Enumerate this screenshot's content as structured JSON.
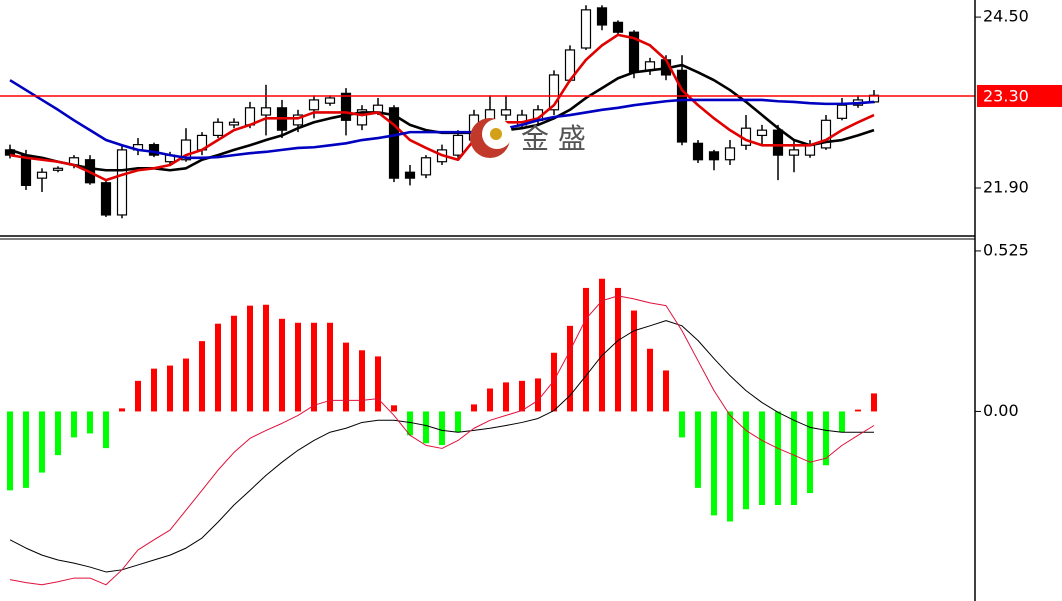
{
  "chart_data": [
    {
      "type": "candlestick",
      "open": [
        22.48,
        22.4,
        22.05,
        22.17,
        22.25,
        22.33,
        21.98,
        21.49,
        22.48,
        22.56,
        22.3,
        22.33,
        22.48,
        22.7,
        22.86,
        22.86,
        23.01,
        23.12,
        22.86,
        23.09,
        23.19,
        23.34,
        22.86,
        23.05,
        23.12,
        22.14,
        22.1,
        22.3,
        22.4,
        22.63,
        22.86,
        23.01,
        22.86,
        22.93,
        23.09,
        23.54,
        24.03,
        24.64,
        24.42,
        24.27,
        23.69,
        23.85,
        23.69,
        22.58,
        22.45,
        22.33,
        22.55,
        22.7,
        22.78,
        22.4,
        22.4,
        22.51,
        22.96,
        23.16,
        23.21
      ],
      "high": [
        22.56,
        22.48,
        22.2,
        22.23,
        22.4,
        22.4,
        22.02,
        22.56,
        22.66,
        22.59,
        22.45,
        22.81,
        22.75,
        22.96,
        22.96,
        23.21,
        23.47,
        23.24,
        23.09,
        23.31,
        23.31,
        23.42,
        23.16,
        23.27,
        23.16,
        22.25,
        22.4,
        22.56,
        22.78,
        23.09,
        23.31,
        23.31,
        23.09,
        23.16,
        23.69,
        24.07,
        24.68,
        24.68,
        24.45,
        24.3,
        23.88,
        23.92,
        23.92,
        22.63,
        22.48,
        22.63,
        23.01,
        22.86,
        22.86,
        22.63,
        22.63,
        23.01,
        23.27,
        23.31,
        23.39
      ],
      "low": [
        22.35,
        21.87,
        21.84,
        22.14,
        22.2,
        21.95,
        21.46,
        21.44,
        22.4,
        22.37,
        22.25,
        22.3,
        22.4,
        22.66,
        22.81,
        22.81,
        22.7,
        22.66,
        22.75,
        22.96,
        23.15,
        22.7,
        22.78,
        23.01,
        21.99,
        21.94,
        22.05,
        22.25,
        22.36,
        22.6,
        22.78,
        22.93,
        22.81,
        22.86,
        23.01,
        23.51,
        24.0,
        24.3,
        24.23,
        23.57,
        23.62,
        23.54,
        22.55,
        22.28,
        22.17,
        22.25,
        22.48,
        22.55,
        22.02,
        22.14,
        22.36,
        22.48,
        22.93,
        23.12,
        23.19
      ],
      "close": [
        22.4,
        21.94,
        22.14,
        22.2,
        22.36,
        21.98,
        21.49,
        22.48,
        22.56,
        22.4,
        22.4,
        22.63,
        22.7,
        22.9,
        22.9,
        23.12,
        23.12,
        22.78,
        23.01,
        23.24,
        23.27,
        22.93,
        23.09,
        23.16,
        22.05,
        22.05,
        22.36,
        22.48,
        22.7,
        23.01,
        23.09,
        23.09,
        23.01,
        23.09,
        23.62,
        24.0,
        24.61,
        24.38,
        24.27,
        23.66,
        23.82,
        23.62,
        22.6,
        22.33,
        22.33,
        22.51,
        22.81,
        22.78,
        22.4,
        22.48,
        22.55,
        22.93,
        23.16,
        23.24,
        23.31
      ],
      "up_color": "#ffffff",
      "down_color": "#000000",
      "series": [
        {
          "color": "#000000",
          "values": [
            22.48,
            22.4,
            22.36,
            22.3,
            22.25,
            22.2,
            22.17,
            22.17,
            22.2,
            22.2,
            22.17,
            22.2,
            22.33,
            22.4,
            22.48,
            22.55,
            22.63,
            22.7,
            22.81,
            22.9,
            22.96,
            23.01,
            23.05,
            23.05,
            23.01,
            22.86,
            22.78,
            22.74,
            22.74,
            22.74,
            22.75,
            22.78,
            22.81,
            22.86,
            22.96,
            23.09,
            23.27,
            23.42,
            23.57,
            23.66,
            23.69,
            23.72,
            23.77,
            23.66,
            23.54,
            23.39,
            23.21,
            23.01,
            22.81,
            22.63,
            22.55,
            22.6,
            22.63,
            22.7,
            22.78
          ]
        },
        {
          "color": "#e00000",
          "values": [
            22.4,
            22.36,
            22.33,
            22.3,
            22.25,
            22.14,
            22.02,
            22.1,
            22.17,
            22.2,
            22.25,
            22.4,
            22.48,
            22.63,
            22.78,
            22.86,
            22.96,
            22.96,
            22.96,
            23.05,
            23.05,
            23.05,
            23.01,
            23.05,
            22.86,
            22.63,
            22.51,
            22.4,
            22.33,
            22.63,
            22.81,
            22.9,
            22.9,
            22.96,
            23.16,
            23.54,
            23.85,
            24.07,
            24.23,
            24.18,
            24.07,
            23.85,
            23.39,
            23.16,
            22.96,
            22.78,
            22.63,
            22.55,
            22.55,
            22.55,
            22.55,
            22.63,
            22.78,
            22.9,
            23.01
          ]
        },
        {
          "color": "#0000c0",
          "values": [
            23.54,
            23.39,
            23.24,
            23.09,
            22.93,
            22.78,
            22.63,
            22.55,
            22.48,
            22.45,
            22.4,
            22.36,
            22.36,
            22.37,
            22.4,
            22.43,
            22.45,
            22.48,
            22.51,
            22.52,
            22.55,
            22.58,
            22.63,
            22.66,
            22.7,
            22.75,
            22.75,
            22.75,
            22.75,
            22.75,
            22.78,
            22.81,
            22.86,
            22.93,
            22.98,
            23.01,
            23.05,
            23.09,
            23.12,
            23.16,
            23.19,
            23.22,
            23.24,
            23.24,
            23.24,
            23.24,
            23.24,
            23.24,
            23.22,
            23.21,
            23.19,
            23.18,
            23.18,
            23.19,
            23.21
          ]
        }
      ],
      "ylim": [
        21.17,
        24.76
      ],
      "yticks": [
        {
          "value": 24.5,
          "label": "24.50"
        },
        {
          "value": 21.9,
          "label": "21.90"
        }
      ],
      "last_price": {
        "value": 23.3,
        "label": "23.30"
      },
      "last_price_color": "#ff0000",
      "watermark": "金 盛"
    },
    {
      "type": "macd",
      "histogram": [
        -0.258,
        -0.25,
        -0.2,
        -0.143,
        -0.085,
        -0.072,
        -0.12,
        0.01,
        0.1,
        0.14,
        0.15,
        0.173,
        0.23,
        0.287,
        0.313,
        0.346,
        0.349,
        0.303,
        0.29,
        0.29,
        0.29,
        0.225,
        0.2,
        0.18,
        0.02,
        -0.078,
        -0.104,
        -0.11,
        -0.068,
        0.023,
        0.075,
        0.095,
        0.1,
        0.108,
        0.192,
        0.28,
        0.404,
        0.434,
        0.404,
        0.33,
        0.205,
        0.134,
        -0.085,
        -0.25,
        -0.34,
        -0.36,
        -0.32,
        -0.306,
        -0.306,
        -0.306,
        -0.267,
        -0.176,
        -0.068,
        0.006,
        0.059
      ],
      "up_color": "#ff0000",
      "down_color": "#00ff00",
      "series": [
        {
          "color": "#000000",
          "values": [
            -0.42,
            -0.447,
            -0.47,
            -0.486,
            -0.496,
            -0.509,
            -0.525,
            -0.518,
            -0.502,
            -0.486,
            -0.47,
            -0.447,
            -0.414,
            -0.362,
            -0.306,
            -0.258,
            -0.209,
            -0.166,
            -0.127,
            -0.095,
            -0.068,
            -0.055,
            -0.036,
            -0.029,
            -0.029,
            -0.036,
            -0.046,
            -0.062,
            -0.068,
            -0.062,
            -0.055,
            -0.046,
            -0.036,
            -0.023,
            0.003,
            0.052,
            0.117,
            0.183,
            0.232,
            0.264,
            0.28,
            0.297,
            0.28,
            0.232,
            0.173,
            0.117,
            0.068,
            0.029,
            -0.003,
            -0.029,
            -0.052,
            -0.062,
            -0.068,
            -0.068,
            -0.068
          ]
        },
        {
          "color": "#e0103a",
          "values": [
            -0.55,
            -0.56,
            -0.567,
            -0.557,
            -0.545,
            -0.545,
            -0.567,
            -0.518,
            -0.453,
            -0.42,
            -0.388,
            -0.323,
            -0.258,
            -0.192,
            -0.134,
            -0.088,
            -0.062,
            -0.039,
            -0.013,
            0.02,
            0.036,
            0.036,
            0.036,
            0.042,
            -0.013,
            -0.078,
            -0.111,
            -0.121,
            -0.095,
            -0.055,
            -0.029,
            -0.013,
            0.003,
            0.036,
            0.101,
            0.199,
            0.303,
            0.362,
            0.378,
            0.368,
            0.355,
            0.346,
            0.264,
            0.166,
            0.068,
            -0.013,
            -0.062,
            -0.095,
            -0.121,
            -0.143,
            -0.166,
            -0.153,
            -0.111,
            -0.078,
            -0.046
          ]
        }
      ],
      "ylim": [
        -0.62,
        0.564
      ],
      "yticks": [
        0.525,
        {
          "value": 0,
          "label": "0.00"
        }
      ]
    }
  ]
}
